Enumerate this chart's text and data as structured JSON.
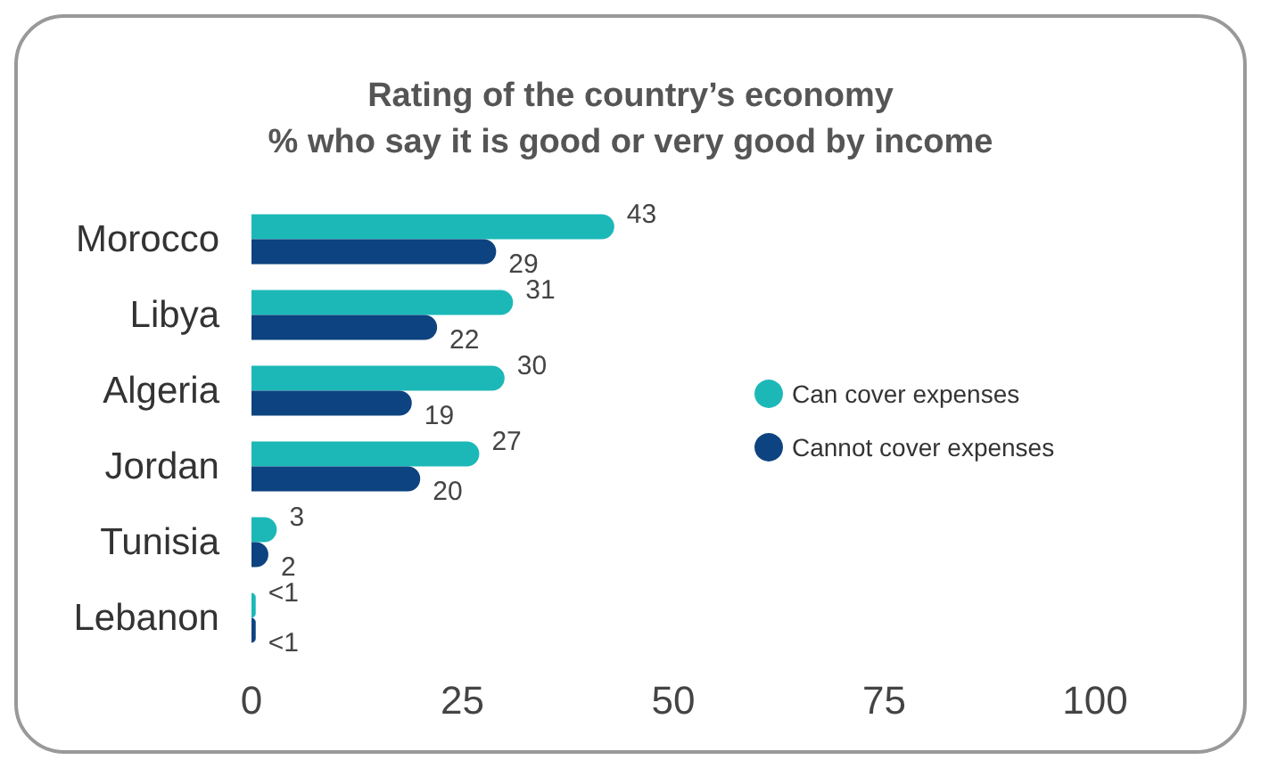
{
  "chart_data": {
    "type": "bar",
    "orientation": "horizontal",
    "title": "Rating of the country’s economy\n% who say it is good or very good by income",
    "categories": [
      "Morocco",
      "Libya",
      "Algeria",
      "Jordan",
      "Tunisia",
      "Lebanon"
    ],
    "series": [
      {
        "name": "Can cover expenses",
        "color": "#1cb8b8",
        "values": [
          43,
          31,
          30,
          27,
          3,
          0.5
        ],
        "value_labels": [
          "43",
          "31",
          "30",
          "27",
          "3",
          "<1"
        ]
      },
      {
        "name": "Cannot cover expenses",
        "color": "#0d4380",
        "values": [
          29,
          22,
          19,
          20,
          2,
          0.5
        ],
        "value_labels": [
          "29",
          "22",
          "19",
          "20",
          "2",
          "<1"
        ]
      }
    ],
    "xlim": [
      0,
      100
    ],
    "xticks": [
      0,
      25,
      50,
      75,
      100
    ],
    "grid": false,
    "legend": "right"
  }
}
